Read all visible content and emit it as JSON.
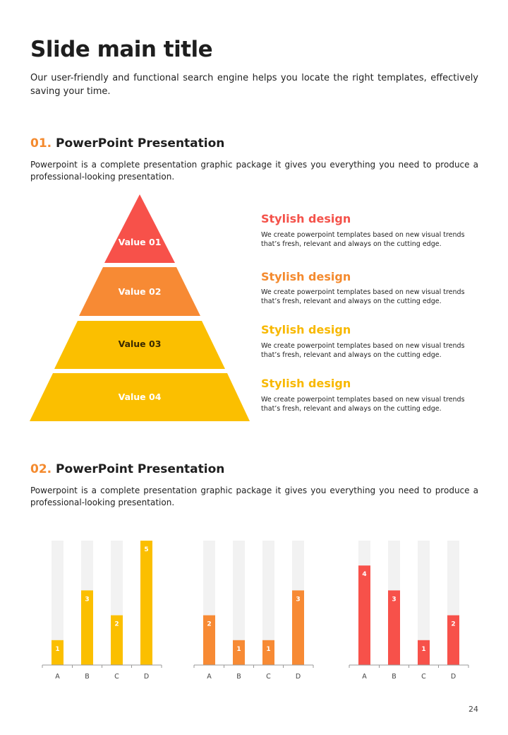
{
  "slide": {
    "title": "Slide main title",
    "lead": "Our user-friendly and functional search engine helps you locate the right templates, effectively saving your time.",
    "page_number": "24"
  },
  "section1": {
    "number": "01.",
    "heading": "PowerPoint Presentation",
    "text": "Powerpoint is a complete presentation graphic package it gives you everything you need to produce a professional-looking presentation."
  },
  "pyramid": {
    "levels": [
      {
        "label": "Value 01",
        "color": "#f7514a"
      },
      {
        "label": "Value 02",
        "color": "#f78a34"
      },
      {
        "label": "Value 03",
        "color": "#fbbf00"
      },
      {
        "label": "Value 04",
        "color": "#fbbf00"
      }
    ],
    "descriptions": [
      {
        "heading": "Stylish design",
        "color": "#f4524a",
        "text": "We create powerpoint templates based on new visual trends that’s fresh, relevant and always on the cutting edge."
      },
      {
        "heading": "Stylish design",
        "color": "#f48a2e",
        "text": "We create powerpoint templates based on new visual trends that’s fresh, relevant and always on the cutting edge."
      },
      {
        "heading": "Stylish design",
        "color": "#f8b800",
        "text": "We create powerpoint templates based on new visual trends that’s fresh, relevant and always on the cutting edge."
      },
      {
        "heading": "Stylish design",
        "color": "#f8b800",
        "text": "We create powerpoint templates based on new visual trends that’s fresh, relevant and always on the cutting edge."
      }
    ]
  },
  "section2": {
    "number": "02.",
    "heading": "PowerPoint Presentation",
    "text": "Powerpoint is a complete presentation graphic package it gives you everything you need to produce a professional-looking presentation."
  },
  "colors": {
    "accent_orange": "#f48a2e",
    "yellow": "#fbbf00",
    "orange": "#f78a34",
    "red": "#f7514a",
    "track": "#f2f2f2"
  },
  "chart_data": [
    {
      "type": "bar",
      "categories": [
        "A",
        "B",
        "C",
        "D"
      ],
      "values": [
        1,
        3,
        2,
        5
      ],
      "ylim": [
        0,
        5
      ],
      "color": "#fbbf00",
      "title": "",
      "xlabel": "",
      "ylabel": "",
      "grid": false
    },
    {
      "type": "bar",
      "categories": [
        "A",
        "B",
        "C",
        "D"
      ],
      "values": [
        2,
        1,
        1,
        3
      ],
      "ylim": [
        0,
        5
      ],
      "color": "#f78a34",
      "title": "",
      "xlabel": "",
      "ylabel": "",
      "grid": false
    },
    {
      "type": "bar",
      "categories": [
        "A",
        "B",
        "C",
        "D"
      ],
      "values": [
        4,
        3,
        1,
        2
      ],
      "ylim": [
        0,
        5
      ],
      "color": "#f7514a",
      "title": "",
      "xlabel": "",
      "ylabel": "",
      "grid": false
    }
  ]
}
